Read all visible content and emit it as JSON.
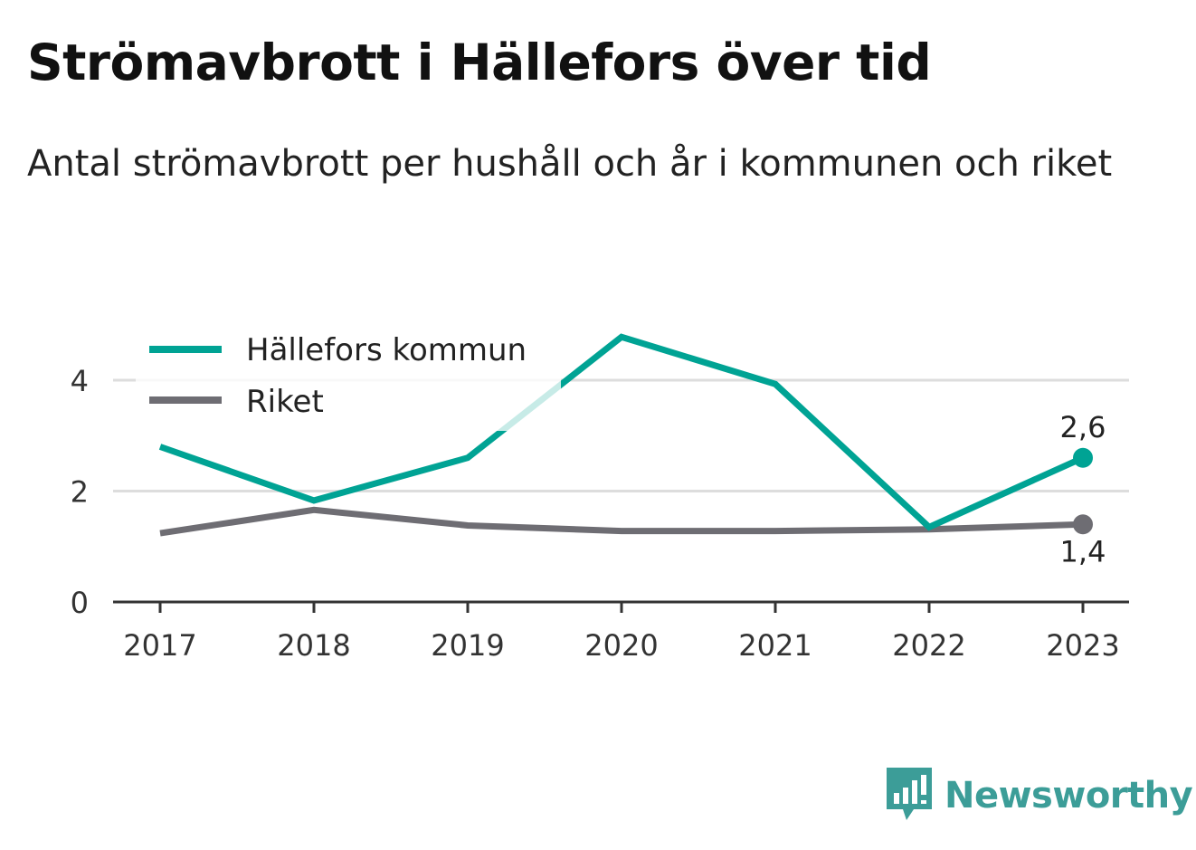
{
  "title": "Strömavbrott i Hällefors över tid",
  "subtitle": "Antal strömavbrott per hushåll och år i kommunen och riket",
  "brand": {
    "name": "Newsworthy",
    "icon": "bar-chart-speech-bubble-icon"
  },
  "colors": {
    "series_primary": "#00a394",
    "series_secondary": "#6e6d73",
    "grid": "#dddddd",
    "axis": "#333333",
    "brand": "#3c9d98"
  },
  "chart_data": {
    "type": "line",
    "x": [
      "2017",
      "2018",
      "2019",
      "2020",
      "2021",
      "2022",
      "2023"
    ],
    "series": [
      {
        "name": "Hällefors kommun",
        "values": [
          2.8,
          1.83,
          2.6,
          4.78,
          3.93,
          1.35,
          2.6
        ],
        "end_label": "2,6",
        "color": "#00a394"
      },
      {
        "name": "Riket",
        "values": [
          1.24,
          1.66,
          1.38,
          1.28,
          1.28,
          1.31,
          1.4
        ],
        "end_label": "1,4",
        "color": "#6e6d73"
      }
    ],
    "yticks": [
      "0",
      "2",
      "4"
    ],
    "ylim": [
      0,
      5
    ],
    "grid": true,
    "legend_position": "top-left",
    "xlabel": "",
    "ylabel": ""
  }
}
